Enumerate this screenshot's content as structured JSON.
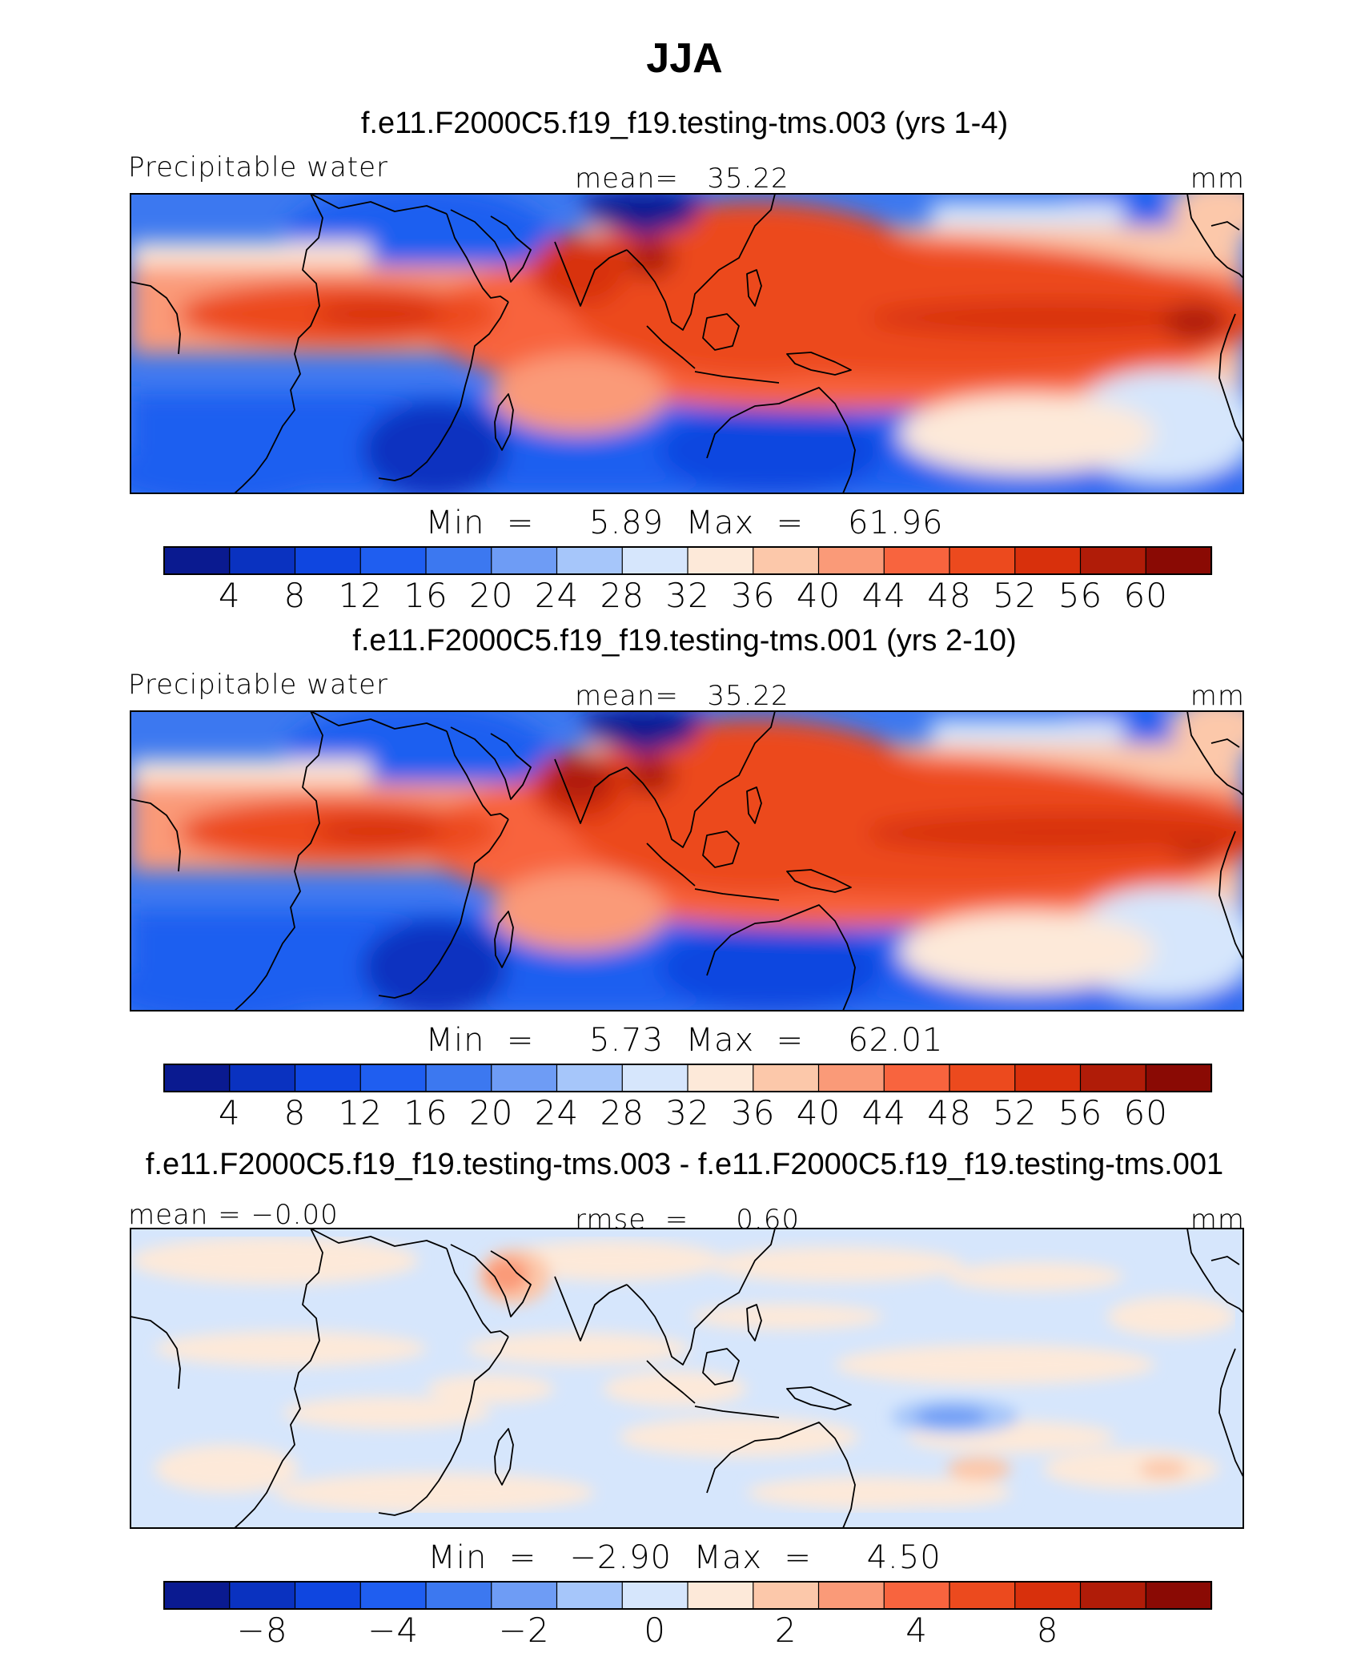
{
  "title": "JJA",
  "colors": {
    "palette": [
      "#0a1a90",
      "#0a32c0",
      "#0f46e0",
      "#1f5ef0",
      "#3c78f0",
      "#6e9cf5",
      "#a6c6fa",
      "#d6e6fc",
      "#fde9d9",
      "#fcc8aa",
      "#fa9a78",
      "#f8643e",
      "#ec4a1e",
      "#d8300c",
      "#b01c08",
      "#8a0a04"
    ]
  },
  "chart_data": [
    {
      "type": "heatmap",
      "subtitle": "f.e11.F2000C5.f19_f19.testing-tms.003 (yrs 1-4)",
      "variable": "Precipitable water",
      "stat_left": "",
      "stat_mid": "mean=   35.22",
      "units": "mm",
      "min_max": "Min  =     5.89  Max  =    61.96",
      "min": 5.89,
      "max": 61.96,
      "mean": 35.22,
      "colorbar_ticks": [
        "4",
        "8",
        "12",
        "16",
        "20",
        "24",
        "28",
        "32",
        "36",
        "40",
        "44",
        "48",
        "52",
        "56",
        "60"
      ],
      "levels": [
        4,
        8,
        12,
        16,
        20,
        24,
        28,
        32,
        36,
        40,
        44,
        48,
        52,
        56,
        60
      ]
    },
    {
      "type": "heatmap",
      "subtitle": "f.e11.F2000C5.f19_f19.testing-tms.001 (yrs 2-10)",
      "variable": "Precipitable water",
      "stat_left": "",
      "stat_mid": "mean=   35.22",
      "units": "mm",
      "min_max": "Min  =     5.73  Max  =    62.01",
      "min": 5.73,
      "max": 62.01,
      "mean": 35.22,
      "colorbar_ticks": [
        "4",
        "8",
        "12",
        "16",
        "20",
        "24",
        "28",
        "32",
        "36",
        "40",
        "44",
        "48",
        "52",
        "56",
        "60"
      ],
      "levels": [
        4,
        8,
        12,
        16,
        20,
        24,
        28,
        32,
        36,
        40,
        44,
        48,
        52,
        56,
        60
      ]
    },
    {
      "type": "heatmap",
      "subtitle": "f.e11.F2000C5.f19_f19.testing-tms.003 - f.e11.F2000C5.f19_f19.testing-tms.001",
      "variable": "",
      "stat_left": "mean  =   −0.00",
      "stat_mid": "rmse  =     0.60",
      "units": "mm",
      "min_max": "Min  =   −2.90  Max  =     4.50",
      "min": -2.9,
      "max": 4.5,
      "mean": 0.0,
      "rmse": 0.6,
      "colorbar_ticks": [
        "−8",
        "−4",
        "−2",
        "0",
        "2",
        "4",
        "8"
      ],
      "tick_positions": [
        1,
        3,
        5,
        7,
        9,
        11,
        13
      ]
    }
  ]
}
